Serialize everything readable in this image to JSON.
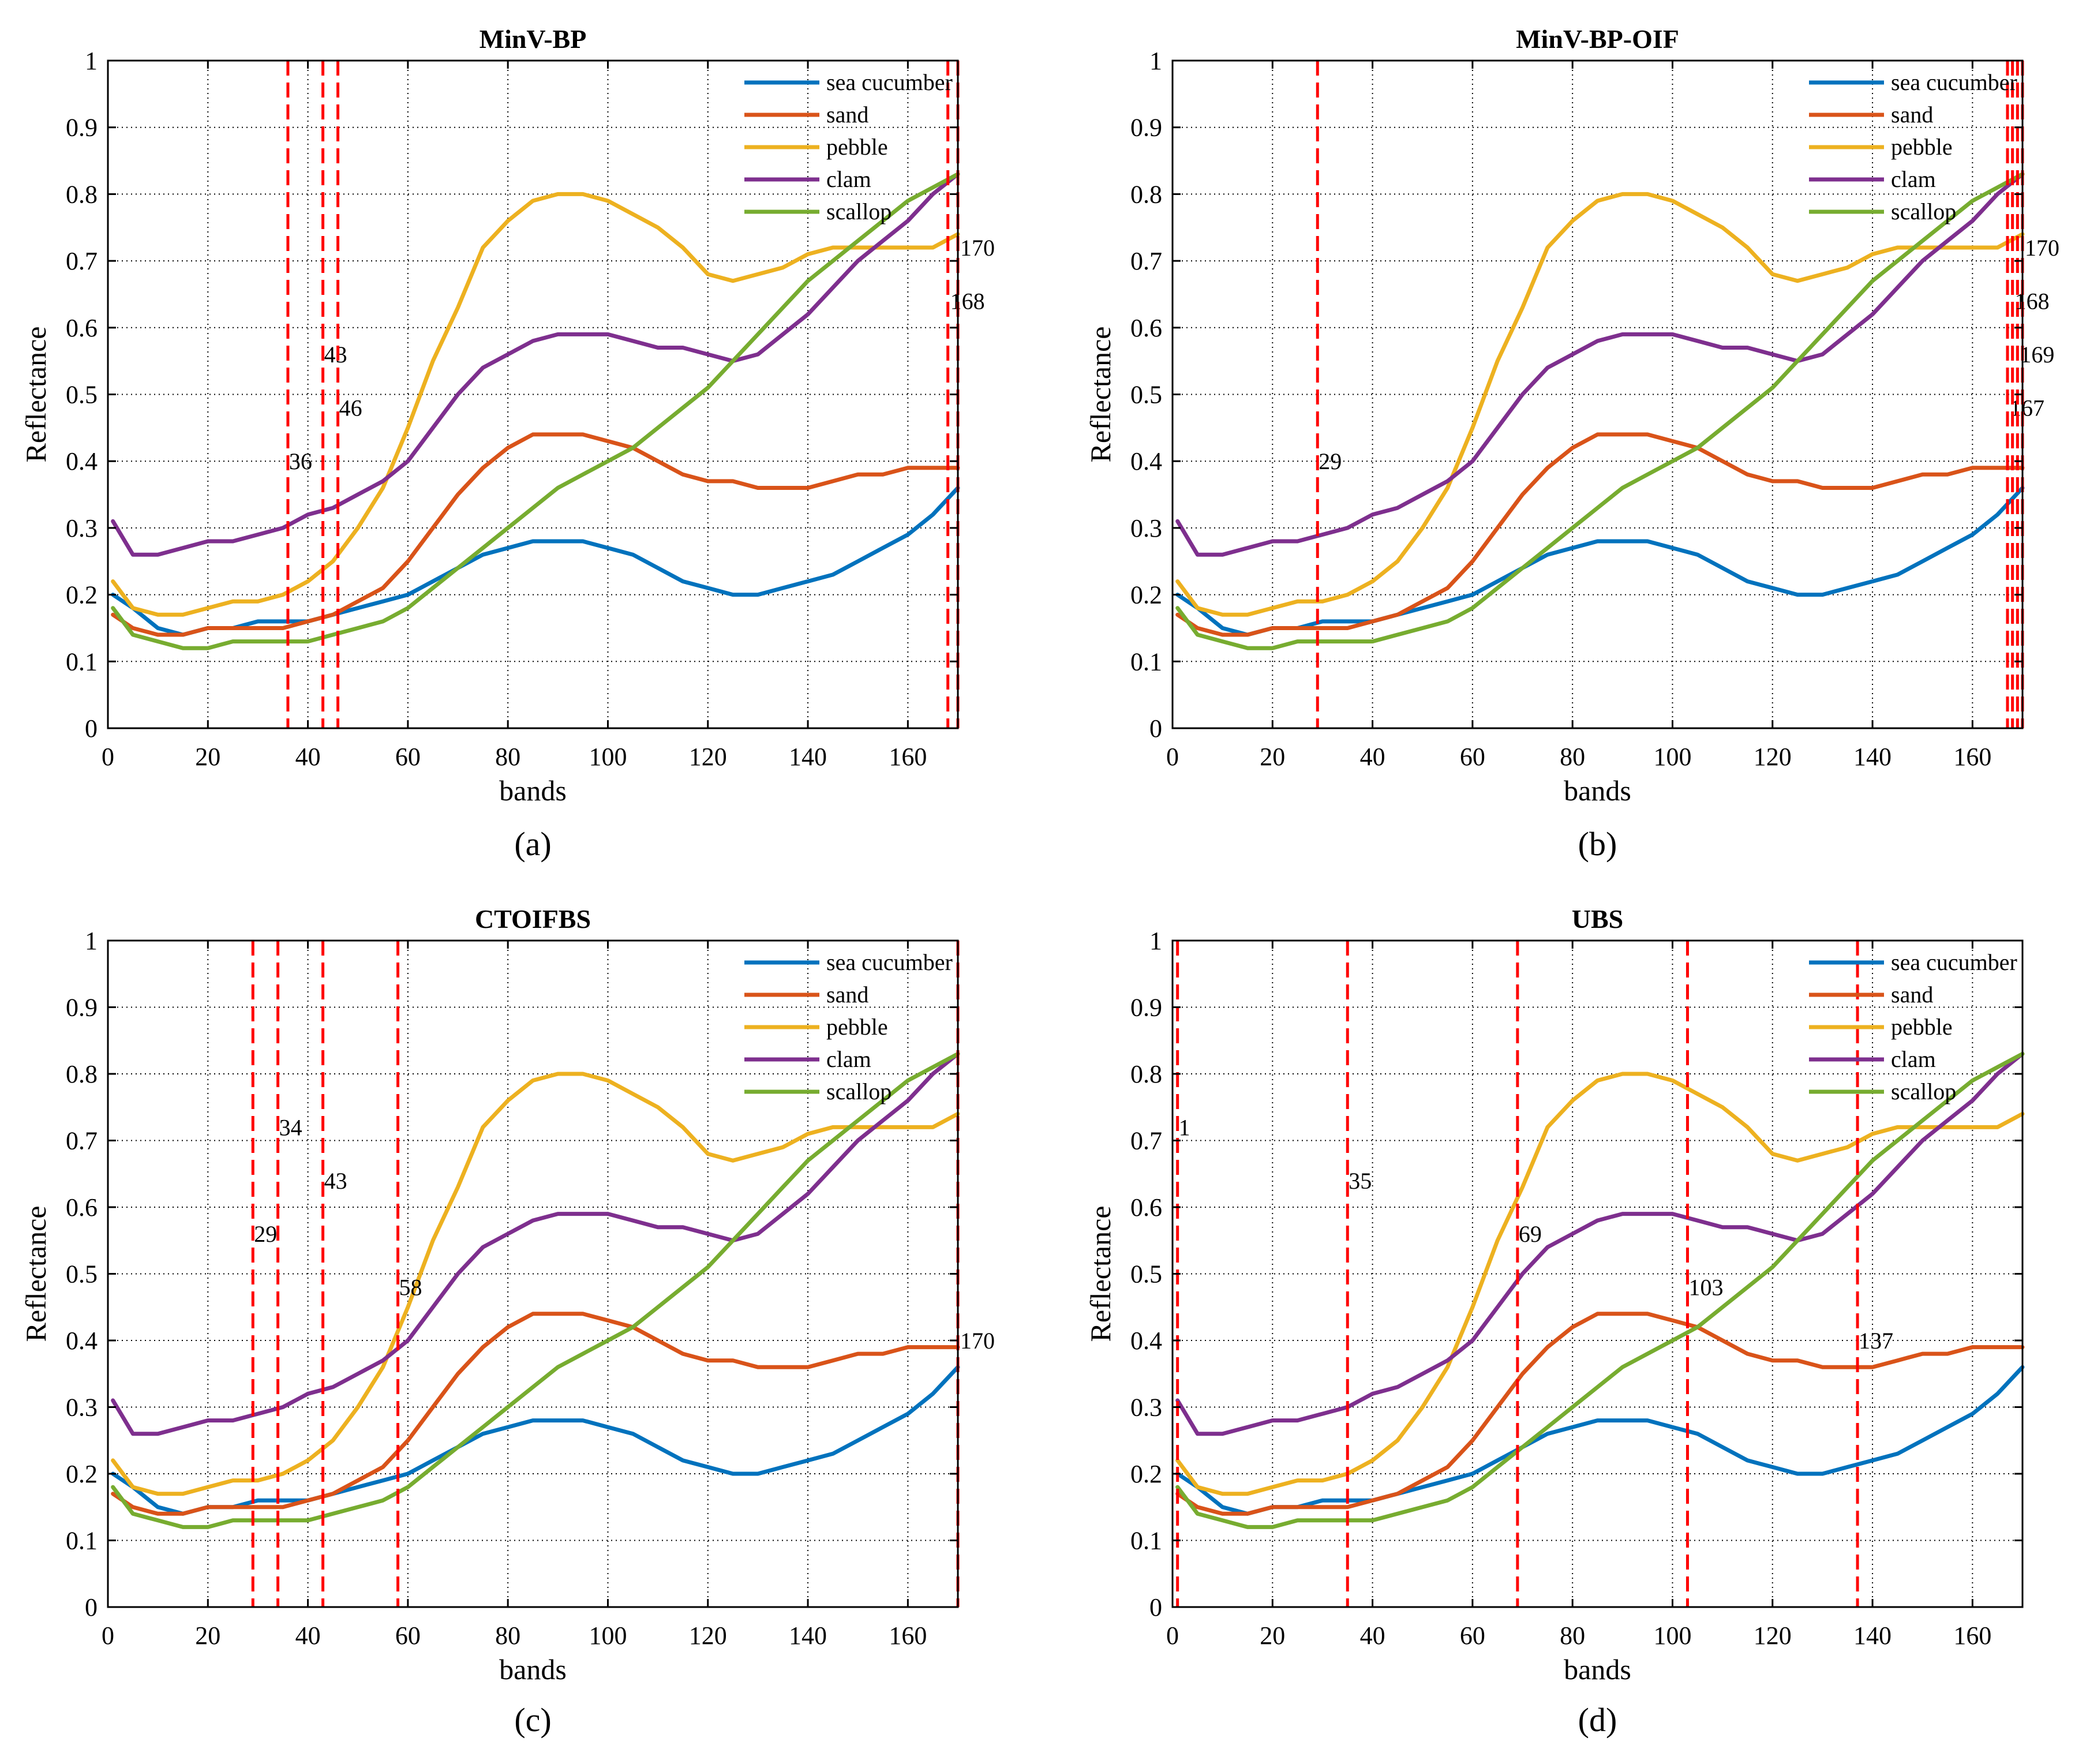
{
  "figure": {
    "panels": [
      {
        "id": "a",
        "title": "MinV-BP",
        "caption": "(a)"
      },
      {
        "id": "b",
        "title": "MinV-BP-OIF",
        "caption": "(b)"
      },
      {
        "id": "c",
        "title": "CTOIFBS",
        "caption": "(c)"
      },
      {
        "id": "d",
        "title": "UBS",
        "caption": "(d)"
      }
    ]
  },
  "colors": {
    "sea_cucumber": "#0072BD",
    "sand": "#D95319",
    "pebble": "#EDB120",
    "clam": "#7E2F8E",
    "scallop": "#77AC30",
    "band_line": "#FF0000",
    "grid": "#000000"
  },
  "chart_data": [
    {
      "type": "line",
      "title": "MinV-BP",
      "caption": "(a)",
      "xlabel": "bands",
      "ylabel": "Reflectance",
      "xlim": [
        0,
        170
      ],
      "ylim": [
        0,
        1
      ],
      "xticks": [
        0,
        20,
        40,
        60,
        80,
        100,
        120,
        140,
        160
      ],
      "yticks": [
        0,
        0.1,
        0.2,
        0.3,
        0.4,
        0.5,
        0.6,
        0.7,
        0.8,
        0.9,
        1
      ],
      "ytick_labels": [
        "0",
        "0.1",
        "0.2",
        "0.3",
        "0.4",
        "0.5",
        "0.6",
        "0.7",
        "0.8",
        "0.9",
        "1"
      ],
      "grid": true,
      "legend": "top-right",
      "selected_bands": [
        {
          "band": 36,
          "label": "36",
          "label_y": 0.4
        },
        {
          "band": 43,
          "label": "43",
          "label_y": 0.56
        },
        {
          "band": 46,
          "label": "46",
          "label_y": 0.48
        },
        {
          "band": 168,
          "label": "168",
          "label_y": 0.64
        },
        {
          "band": 170,
          "label": "170",
          "label_y": 0.72
        }
      ]
    },
    {
      "type": "line",
      "title": "MinV-BP-OIF",
      "caption": "(b)",
      "xlabel": "bands",
      "ylabel": "Reflectance",
      "xlim": [
        0,
        170
      ],
      "ylim": [
        0,
        1
      ],
      "xticks": [
        0,
        20,
        40,
        60,
        80,
        100,
        120,
        140,
        160
      ],
      "yticks": [
        0,
        0.1,
        0.2,
        0.3,
        0.4,
        0.5,
        0.6,
        0.7,
        0.8,
        0.9,
        1
      ],
      "ytick_labels": [
        "0",
        "0.1",
        "0.2",
        "0.3",
        "0.4",
        "0.5",
        "0.6",
        "0.7",
        "0.8",
        "0.9",
        "1"
      ],
      "grid": true,
      "legend": "top-right",
      "selected_bands": [
        {
          "band": 29,
          "label": "29",
          "label_y": 0.4
        },
        {
          "band": 167,
          "label": "167",
          "label_y": 0.48
        },
        {
          "band": 169,
          "label": "169",
          "label_y": 0.56
        },
        {
          "band": 168,
          "label": "168",
          "label_y": 0.64
        },
        {
          "band": 170,
          "label": "170",
          "label_y": 0.72
        }
      ]
    },
    {
      "type": "line",
      "title": "CTOIFBS",
      "caption": "(c)",
      "xlabel": "bands",
      "ylabel": "Reflectance",
      "xlim": [
        0,
        170
      ],
      "ylim": [
        0,
        1
      ],
      "xticks": [
        0,
        20,
        40,
        60,
        80,
        100,
        120,
        140,
        160
      ],
      "yticks": [
        0,
        0.1,
        0.2,
        0.3,
        0.4,
        0.5,
        0.6,
        0.7,
        0.8,
        0.9,
        1
      ],
      "ytick_labels": [
        "0",
        "0.1",
        "0.2",
        "0.3",
        "0.4",
        "0.5",
        "0.6",
        "0.7",
        "0.8",
        "0.9",
        "1"
      ],
      "grid": true,
      "legend": "top-right",
      "selected_bands": [
        {
          "band": 29,
          "label": "29",
          "label_y": 0.56
        },
        {
          "band": 34,
          "label": "34",
          "label_y": 0.72
        },
        {
          "band": 43,
          "label": "43",
          "label_y": 0.64
        },
        {
          "band": 58,
          "label": "58",
          "label_y": 0.48
        },
        {
          "band": 170,
          "label": "170",
          "label_y": 0.4
        }
      ]
    },
    {
      "type": "line",
      "title": "UBS",
      "caption": "(d)",
      "xlabel": "bands",
      "ylabel": "Reflectance",
      "xlim": [
        0,
        170
      ],
      "ylim": [
        0,
        1
      ],
      "xticks": [
        0,
        20,
        40,
        60,
        80,
        100,
        120,
        140,
        160
      ],
      "yticks": [
        0,
        0.1,
        0.2,
        0.3,
        0.4,
        0.5,
        0.6,
        0.7,
        0.8,
        0.9,
        1
      ],
      "ytick_labels": [
        "0",
        "0.1",
        "0.2",
        "0.3",
        "0.4",
        "0.5",
        "0.6",
        "0.7",
        "0.8",
        "0.9",
        "1"
      ],
      "grid": true,
      "legend": "top-right",
      "selected_bands": [
        {
          "band": 1,
          "label": "1",
          "label_y": 0.72
        },
        {
          "band": 35,
          "label": "35",
          "label_y": 0.64
        },
        {
          "band": 69,
          "label": "69",
          "label_y": 0.56
        },
        {
          "band": 103,
          "label": "103",
          "label_y": 0.48
        },
        {
          "band": 137,
          "label": "137",
          "label_y": 0.4
        }
      ]
    }
  ],
  "series": [
    {
      "key": "sea_cucumber",
      "name": "sea cucumber",
      "x": [
        1,
        5,
        10,
        15,
        20,
        25,
        30,
        35,
        40,
        45,
        50,
        55,
        60,
        65,
        70,
        75,
        80,
        85,
        90,
        95,
        100,
        105,
        110,
        115,
        120,
        125,
        130,
        135,
        140,
        145,
        150,
        155,
        160,
        165,
        170
      ],
      "values": [
        0.2,
        0.18,
        0.15,
        0.14,
        0.15,
        0.15,
        0.16,
        0.16,
        0.16,
        0.17,
        0.18,
        0.19,
        0.2,
        0.22,
        0.24,
        0.26,
        0.27,
        0.28,
        0.28,
        0.28,
        0.27,
        0.26,
        0.24,
        0.22,
        0.21,
        0.2,
        0.2,
        0.21,
        0.22,
        0.23,
        0.25,
        0.27,
        0.29,
        0.32,
        0.36
      ]
    },
    {
      "key": "sand",
      "name": "sand",
      "x": [
        1,
        5,
        10,
        15,
        20,
        25,
        30,
        35,
        40,
        45,
        50,
        55,
        60,
        65,
        70,
        75,
        80,
        85,
        90,
        95,
        100,
        105,
        110,
        115,
        120,
        125,
        130,
        135,
        140,
        145,
        150,
        155,
        160,
        165,
        170
      ],
      "values": [
        0.17,
        0.15,
        0.14,
        0.14,
        0.15,
        0.15,
        0.15,
        0.15,
        0.16,
        0.17,
        0.19,
        0.21,
        0.25,
        0.3,
        0.35,
        0.39,
        0.42,
        0.44,
        0.44,
        0.44,
        0.43,
        0.42,
        0.4,
        0.38,
        0.37,
        0.37,
        0.36,
        0.36,
        0.36,
        0.37,
        0.38,
        0.38,
        0.39,
        0.39,
        0.39
      ]
    },
    {
      "key": "pebble",
      "name": "pebble",
      "x": [
        1,
        5,
        10,
        15,
        20,
        25,
        30,
        35,
        40,
        45,
        50,
        55,
        60,
        65,
        70,
        75,
        80,
        85,
        90,
        95,
        100,
        105,
        110,
        115,
        120,
        125,
        130,
        135,
        140,
        145,
        150,
        155,
        160,
        165,
        170
      ],
      "values": [
        0.22,
        0.18,
        0.17,
        0.17,
        0.18,
        0.19,
        0.19,
        0.2,
        0.22,
        0.25,
        0.3,
        0.36,
        0.45,
        0.55,
        0.63,
        0.72,
        0.76,
        0.79,
        0.8,
        0.8,
        0.79,
        0.77,
        0.75,
        0.72,
        0.68,
        0.67,
        0.68,
        0.69,
        0.71,
        0.72,
        0.72,
        0.72,
        0.72,
        0.72,
        0.74
      ]
    },
    {
      "key": "clam",
      "name": "clam",
      "x": [
        1,
        5,
        10,
        15,
        20,
        25,
        30,
        35,
        40,
        45,
        50,
        55,
        60,
        65,
        70,
        75,
        80,
        85,
        90,
        95,
        100,
        105,
        110,
        115,
        120,
        125,
        130,
        135,
        140,
        145,
        150,
        155,
        160,
        165,
        170
      ],
      "values": [
        0.31,
        0.26,
        0.26,
        0.27,
        0.28,
        0.28,
        0.29,
        0.3,
        0.32,
        0.33,
        0.35,
        0.37,
        0.4,
        0.45,
        0.5,
        0.54,
        0.56,
        0.58,
        0.59,
        0.59,
        0.59,
        0.58,
        0.57,
        0.57,
        0.56,
        0.55,
        0.56,
        0.59,
        0.62,
        0.66,
        0.7,
        0.73,
        0.76,
        0.8,
        0.83
      ]
    },
    {
      "key": "scallop",
      "name": "scallop",
      "x": [
        1,
        5,
        10,
        15,
        20,
        25,
        30,
        35,
        40,
        45,
        50,
        55,
        60,
        65,
        70,
        75,
        80,
        85,
        90,
        95,
        100,
        105,
        110,
        115,
        120,
        125,
        130,
        135,
        140,
        145,
        150,
        155,
        160,
        165,
        170
      ],
      "values": [
        0.18,
        0.14,
        0.13,
        0.12,
        0.12,
        0.13,
        0.13,
        0.13,
        0.13,
        0.14,
        0.15,
        0.16,
        0.18,
        0.21,
        0.24,
        0.27,
        0.3,
        0.33,
        0.36,
        0.38,
        0.4,
        0.42,
        0.45,
        0.48,
        0.51,
        0.55,
        0.59,
        0.63,
        0.67,
        0.7,
        0.73,
        0.76,
        0.79,
        0.81,
        0.83
      ]
    }
  ]
}
